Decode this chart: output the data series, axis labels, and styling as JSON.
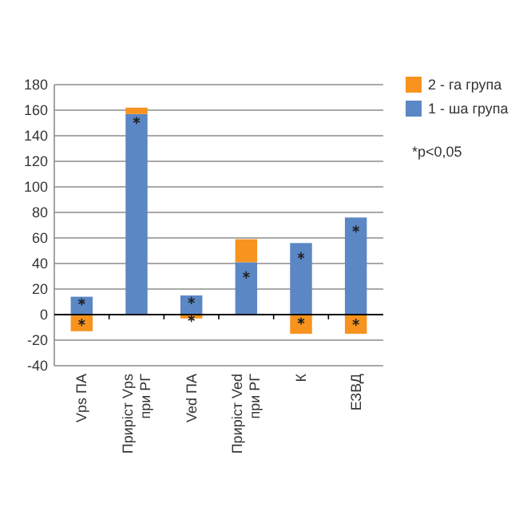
{
  "chart_data": {
    "type": "bar",
    "stacked": true,
    "categories": [
      "Vps ПА",
      "Приріст Vps при РГ",
      "Ved ПА",
      "Приріст Ved при РГ",
      "К",
      "ЕЗВД"
    ],
    "series": [
      {
        "name": "1 - ша група",
        "color": "#5b87c5",
        "values": [
          14,
          157,
          15,
          41,
          56,
          76
        ]
      },
      {
        "name": "2 - га група",
        "color": "#f7931e",
        "values": [
          -13,
          5,
          -3,
          18,
          -15,
          -15
        ]
      },
      {
        "type": "scatter",
        "marker": "cross",
        "color": "#222222",
        "x": [
          "Vps ПА",
          "Vps ПА",
          "Приріст Vps при РГ",
          "Ved ПА",
          "Ved ПА",
          "Приріст Ved при РГ",
          "К",
          "К",
          "ЕЗВД",
          "ЕЗВД"
        ],
        "values": [
          10,
          -6,
          152,
          11,
          -3,
          31,
          46,
          -5,
          67,
          -6
        ]
      }
    ],
    "ylim": [
      -40,
      180
    ],
    "yticks": [
      -40,
      -20,
      0,
      20,
      40,
      60,
      80,
      100,
      120,
      140,
      160,
      180
    ],
    "grid": "y",
    "legend": "top right",
    "annotations": [
      "*p<0,05"
    ]
  }
}
